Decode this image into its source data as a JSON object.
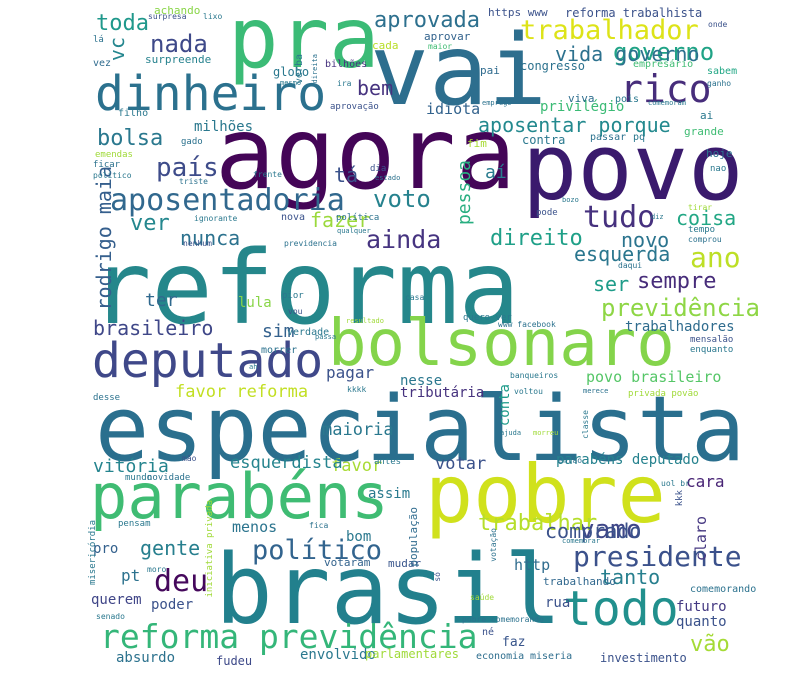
{
  "words": [
    {
      "text": "reforma",
      "color": "#25878b"
    },
    {
      "text": "especialista",
      "color": "#2a6f8e"
    },
    {
      "text": "agora",
      "color": "#440557"
    },
    {
      "text": "povo",
      "color": "#3a1a6d"
    },
    {
      "text": "brasil",
      "color": "#22808d"
    },
    {
      "text": "pra",
      "color": "#3bbb76"
    },
    {
      "text": "vai",
      "color": "#2d6e8e"
    },
    {
      "text": "pobre",
      "color": "#d0e11c"
    },
    {
      "text": "bolsonaro",
      "color": "#84d44b"
    },
    {
      "text": "parabéns",
      "color": "#3fbc73"
    },
    {
      "text": "dinheiro",
      "color": "#2b718e"
    },
    {
      "text": "deputado",
      "color": "#3f4889"
    },
    {
      "text": "todo",
      "color": "#21908d"
    },
    {
      "text": "reforma previdência",
      "color": "#34b679"
    },
    {
      "text": "aposentadoria",
      "color": "#31688e"
    },
    {
      "text": "rico",
      "color": "#472d7b"
    },
    {
      "text": "presidente",
      "color": "#3b518b"
    },
    {
      "text": "trabalhador",
      "color": "#dde318"
    },
    {
      "text": "governo",
      "color": "#20a386"
    },
    {
      "text": "político",
      "color": "#32648e"
    },
    {
      "text": "país",
      "color": "#3e4c8a"
    },
    {
      "text": "vamo",
      "color": "#3f4788"
    },
    {
      "text": "trabalhar",
      "color": "#b5de2b"
    },
    {
      "text": "tudo",
      "color": "#46317e"
    },
    {
      "text": "ainda",
      "color": "#463480"
    },
    {
      "text": "voto",
      "color": "#26828e"
    },
    {
      "text": "bolsa",
      "color": "#2a788e"
    },
    {
      "text": "ano",
      "color": "#bddf26"
    },
    {
      "text": "nada",
      "color": "#3e4989"
    },
    {
      "text": "toda",
      "color": "#1f988b"
    },
    {
      "text": "aprovada",
      "color": "#2d708e"
    },
    {
      "text": "aposentar porque",
      "color": "#23898e"
    },
    {
      "text": "vida governo",
      "color": "#2c718e"
    },
    {
      "text": "direito",
      "color": "#1fa088"
    },
    {
      "text": "esquerda",
      "color": "#2a768e"
    },
    {
      "text": "sempre",
      "color": "#472c7a"
    },
    {
      "text": "previdência",
      "color": "#8ed645"
    },
    {
      "text": "ser",
      "color": "#1e9c89"
    },
    {
      "text": "deu",
      "color": "#45085c"
    },
    {
      "text": "tanto",
      "color": "#277f8e"
    },
    {
      "text": "gente",
      "color": "#277f8e"
    },
    {
      "text": "ver",
      "color": "#24878e"
    },
    {
      "text": "nunca",
      "color": "#2c728e"
    },
    {
      "text": "fazer",
      "color": "#9bd93c"
    },
    {
      "text": "novo",
      "color": "#2b748e"
    },
    {
      "text": "coisa",
      "color": "#22a785"
    },
    {
      "text": "rodrigo maia",
      "color": "#355f8d"
    },
    {
      "text": "brasileiro",
      "color": "#3f4788"
    },
    {
      "text": "comprado",
      "color": "#3b528b"
    },
    {
      "text": "vão",
      "color": "#a5db36"
    },
    {
      "text": "tá",
      "color": "#3b528b"
    },
    {
      "text": "aí",
      "color": "#297b8e"
    },
    {
      "text": "bem",
      "color": "#46337f"
    },
    {
      "text": "vc",
      "color": "#24868e"
    },
    {
      "text": "pessoa",
      "color": "#28ae80"
    },
    {
      "text": "ter",
      "color": "#30698e"
    },
    {
      "text": "favor reforma",
      "color": "#c2df23"
    },
    {
      "text": "favor",
      "color": "#a8db34"
    },
    {
      "text": "sim",
      "color": "#34618d"
    },
    {
      "text": "vitória",
      "color": "#25848e"
    },
    {
      "text": "esquerdista",
      "color": "#25848e"
    },
    {
      "text": "votar",
      "color": "#3b528b"
    },
    {
      "text": "maioria",
      "color": "#2a788e"
    },
    {
      "text": "pagar",
      "color": "#3b528b"
    },
    {
      "text": "povo brasileiro",
      "color": "#55c667"
    },
    {
      "text": "parabéns deputado",
      "color": "#26828e"
    },
    {
      "text": "trabalhadores",
      "color": "#2f6c8e"
    },
    {
      "text": "cara",
      "color": "#482475"
    },
    {
      "text": "pt",
      "color": "#2c728e"
    },
    {
      "text": "http",
      "color": "#2f6c8e"
    },
    {
      "text": "claro",
      "color": "#453781"
    },
    {
      "text": "futuro",
      "color": "#443983"
    },
    {
      "text": "quanto",
      "color": "#3b528b"
    },
    {
      "text": "querem",
      "color": "#404688"
    },
    {
      "text": "poder",
      "color": "#3b528b"
    },
    {
      "text": "pro",
      "color": "#34618d"
    },
    {
      "text": "menos",
      "color": "#2b748e"
    },
    {
      "text": "bom",
      "color": "#2a788e"
    },
    {
      "text": "assim",
      "color": "#297a8e"
    },
    {
      "text": "rua",
      "color": "#3b528b"
    },
    {
      "text": "lula",
      "color": "#89d548"
    },
    {
      "text": "tributária",
      "color": "#46327e"
    },
    {
      "text": "conta",
      "color": "#1e9b8a"
    },
    {
      "text": "nesse",
      "color": "#2a778e"
    },
    {
      "text": "envolvido",
      "color": "#2a788e"
    },
    {
      "text": "faz",
      "color": "#39568c"
    },
    {
      "text": "investimento",
      "color": "#3b528b"
    },
    {
      "text": "absurdo",
      "color": "#2c728e"
    },
    {
      "text": "fudeu",
      "color": "#3e4a89"
    },
    {
      "text": "parlamentares",
      "color": "#a0da39"
    },
    {
      "text": "economia",
      "color": "#2e6e8e"
    },
    {
      "text": "miseria",
      "color": "#2e6e8e"
    },
    {
      "text": "mudar",
      "color": "#39568c"
    },
    {
      "text": "votaram",
      "color": "#33638d"
    },
    {
      "text": "população",
      "color": "#2f6b8e"
    },
    {
      "text": "trabalhando",
      "color": "#31688e"
    },
    {
      "text": "comemorando",
      "color": "#2c728e"
    },
    {
      "text": "milhões",
      "color": "#2a788e"
    },
    {
      "text": "bilhões",
      "color": "#46327e"
    },
    {
      "text": "globo",
      "color": "#2a788e"
    },
    {
      "text": "idiota",
      "color": "#33638d"
    },
    {
      "text": "privilégio",
      "color": "#3bbb75"
    },
    {
      "text": "viva",
      "color": "#2e6e8e"
    },
    {
      "text": "congresso",
      "color": "#2c728e"
    },
    {
      "text": "empresário",
      "color": "#3fbc73"
    },
    {
      "text": "reforma trabalhista",
      "color": "#3b528b"
    },
    {
      "text": "https www",
      "color": "#3b528b"
    },
    {
      "text": "aprovar",
      "color": "#33638d"
    },
    {
      "text": "cada",
      "color": "#b8de29"
    },
    {
      "text": "verba",
      "color": "#2a788e"
    },
    {
      "text": "surpreende",
      "color": "#26828e"
    },
    {
      "text": "achando",
      "color": "#89d548"
    },
    {
      "text": "surpresa",
      "color": "#3b528b"
    },
    {
      "text": "lixo",
      "color": "#2a788e"
    },
    {
      "text": "onde",
      "color": "#3b528b"
    },
    {
      "text": "lá",
      "color": "#2c728e"
    },
    {
      "text": "vez",
      "color": "#2f6b8e"
    },
    {
      "text": "maior",
      "color": "#3fbc73"
    },
    {
      "text": "sabem",
      "color": "#22a785"
    },
    {
      "text": "ganho",
      "color": "#2c728e"
    },
    {
      "text": "pai",
      "color": "#2f6b8e"
    },
    {
      "text": "pois",
      "color": "#2a788e"
    },
    {
      "text": "ai",
      "color": "#2a788e"
    },
    {
      "text": "grande",
      "color": "#3fbc73"
    },
    {
      "text": "hoje",
      "color": "#2c728e"
    },
    {
      "text": "nao",
      "color": "#2a788e"
    },
    {
      "text": "fim",
      "color": "#a8db34"
    },
    {
      "text": "contra",
      "color": "#2a788e"
    },
    {
      "text": "passar",
      "color": "#2c728e"
    },
    {
      "text": "pq",
      "color": "#2a788e"
    },
    {
      "text": "aprovação",
      "color": "#3b528b"
    },
    {
      "text": "ira",
      "color": "#2a788e"
    },
    {
      "text": "filho",
      "color": "#2a788e"
    },
    {
      "text": "gado",
      "color": "#2c728e"
    },
    {
      "text": "emendas",
      "color": "#a0da39"
    },
    {
      "text": "ficar",
      "color": "#2c728e"
    },
    {
      "text": "político",
      "color": "#2a788e"
    },
    {
      "text": "triste",
      "color": "#2c728e"
    },
    {
      "text": "frente",
      "color": "#2a788e"
    },
    {
      "text": "dia",
      "color": "#3b528b"
    },
    {
      "text": "estado",
      "color": "#2c728e"
    },
    {
      "text": "ignorante",
      "color": "#2a788e"
    },
    {
      "text": "nova",
      "color": "#3b528b"
    },
    {
      "text": "política",
      "color": "#2c728e"
    },
    {
      "text": "qualquer",
      "color": "#2a788e"
    },
    {
      "text": "pode",
      "color": "#3b528b"
    },
    {
      "text": "bozo",
      "color": "#2a788e"
    },
    {
      "text": "tirar",
      "color": "#a0da39"
    },
    {
      "text": "tempo",
      "color": "#2a788e"
    },
    {
      "text": "comprou",
      "color": "#2c728e"
    },
    {
      "text": "diz",
      "color": "#2a788e"
    },
    {
      "text": "daqui",
      "color": "#2c728e"
    },
    {
      "text": "nenhum",
      "color": "#3b528b"
    },
    {
      "text": "previdencia",
      "color": "#2c728e"
    },
    {
      "text": "pior",
      "color": "#2a788e"
    },
    {
      "text": "casa",
      "color": "#2a788e"
    },
    {
      "text": "resultado",
      "color": "#a0da39"
    },
    {
      "text": "quero ver",
      "color": "#2a788e"
    },
    {
      "text": "www facebook",
      "color": "#2c728e"
    },
    {
      "text": "mensalão",
      "color": "#3b528b"
    },
    {
      "text": "verdade",
      "color": "#2a788e"
    },
    {
      "text": "morrer",
      "color": "#2c728e"
    },
    {
      "text": "passa",
      "color": "#2a788e"
    },
    {
      "text": "vou",
      "color": "#3b528b"
    },
    {
      "text": "enquanto",
      "color": "#2a788e"
    },
    {
      "text": "desse",
      "color": "#2c728e"
    },
    {
      "text": "kkkk",
      "color": "#2a788e"
    },
    {
      "text": "banqueiros",
      "color": "#2a788e"
    },
    {
      "text": "privada povão",
      "color": "#a0da39"
    },
    {
      "text": "voltou",
      "color": "#2a788e"
    },
    {
      "text": "merece",
      "color": "#2c728e"
    },
    {
      "text": "mão",
      "color": "#3b528b"
    },
    {
      "text": "antes",
      "color": "#2a788e"
    },
    {
      "text": "então",
      "color": "#2c728e"
    },
    {
      "text": "mundo",
      "color": "#2a788e"
    },
    {
      "text": "novidade",
      "color": "#2c728e"
    },
    {
      "text": "uol br",
      "color": "#2a788e"
    },
    {
      "text": "kkk",
      "color": "#3b528b"
    },
    {
      "text": "misericórdia",
      "color": "#2a788e"
    },
    {
      "text": "pensam",
      "color": "#2a788e"
    },
    {
      "text": "fica",
      "color": "#2c728e"
    },
    {
      "text": "moro",
      "color": "#2a788e"
    },
    {
      "text": "iniciativa privada",
      "color": "#a0da39"
    },
    {
      "text": "senado",
      "color": "#2a788e"
    },
    {
      "text": "só",
      "color": "#3b528b"
    },
    {
      "text": "saúde",
      "color": "#a0da39"
    },
    {
      "text": "votação",
      "color": "#2c728e"
    },
    {
      "text": "comemorar",
      "color": "#2a788e"
    },
    {
      "text": "pobre comemorando",
      "color": "#2c728e"
    },
    {
      "text": "né",
      "color": "#3b528b"
    },
    {
      "text": "classe",
      "color": "#2a788e"
    },
    {
      "text": "emprego",
      "color": "#2c728e"
    },
    {
      "text": "comemoram",
      "color": "#2a788e"
    },
    {
      "text": "mesmo",
      "color": "#2a788e"
    },
    {
      "text": "direita",
      "color": "#2c728e"
    },
    {
      "text": "ah",
      "color": "#2a788e"
    },
    {
      "text": "morreu",
      "color": "#a0da39"
    },
    {
      "text": "ajuda",
      "color": "#2a788e"
    }
  ]
}
